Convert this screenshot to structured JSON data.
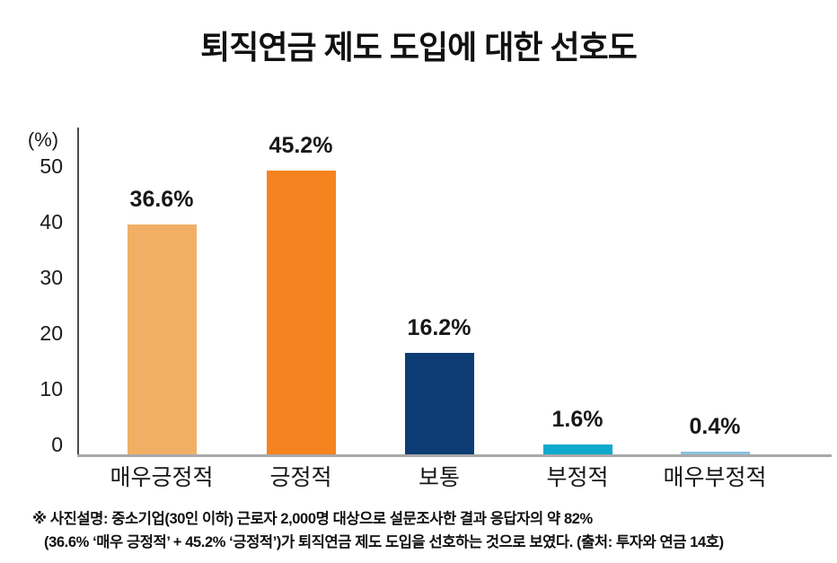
{
  "title": "퇴직연금 제도 도입에 대한 선호도",
  "chart_data": {
    "type": "bar",
    "title": "퇴직연금 제도 도입에 대한 선호도",
    "unit_label": "(%)",
    "categories": [
      "매우긍정적",
      "긍정적",
      "보통",
      "부정적",
      "매우부정적"
    ],
    "values": [
      36.6,
      45.2,
      16.2,
      1.6,
      0.4
    ],
    "value_labels": [
      "36.6%",
      "45.2%",
      "16.2%",
      "1.6%",
      "0.4%"
    ],
    "bar_colors": [
      "#F1AF66",
      "#F5831F",
      "#0E3C74",
      "#10A9CE",
      "#8BC2E0"
    ],
    "yticks": [
      0,
      10,
      20,
      30,
      40,
      50
    ],
    "ylim": [
      0,
      50
    ],
    "xlabel": "",
    "ylabel": "(%)",
    "grid": false,
    "legend": false
  },
  "footnote": {
    "line1": "※ 사진설명: 중소기업(30인 이하) 근로자 2,000명 대상으로 설문조사한 결과 응답자의 약 82%",
    "line2": "(36.6% ‘매우 긍정적’ + 45.2% ‘긍정적’)가 퇴직연금 제도 도입을 선호하는 것으로 보였다. (출처: 투자와 연금 14호)"
  }
}
